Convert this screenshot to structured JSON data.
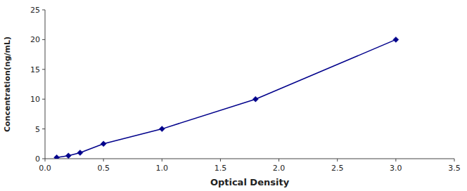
{
  "chart_data": {
    "type": "line",
    "xlabel": "Optical Density",
    "ylabel": "Concentration(ng/mL)",
    "x": [
      0.1,
      0.2,
      0.3,
      0.5,
      1.0,
      1.8,
      3.0
    ],
    "values": [
      0.2,
      0.5,
      1.0,
      2.5,
      5.0,
      10.0,
      20.0
    ],
    "color": "#00008B",
    "marker": "diamond",
    "xlim": [
      0,
      3.5
    ],
    "ylim": [
      0,
      25
    ],
    "xticks": [
      {
        "value": 0,
        "label": "0.0"
      },
      0.5,
      {
        "value": 1.0,
        "label": "1.0"
      },
      1.5,
      {
        "value": 2.0,
        "label": "2.0"
      },
      2.5,
      {
        "value": 3.0,
        "label": "3.0"
      },
      3.5
    ],
    "yticks": [
      0,
      5,
      10,
      15,
      20,
      25
    ],
    "grid": false
  }
}
